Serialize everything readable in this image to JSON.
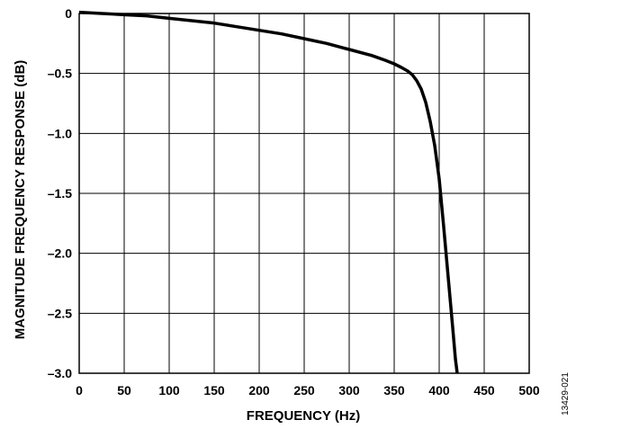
{
  "chart_data": {
    "type": "line",
    "title": "",
    "xlabel": "FREQUENCY (Hz)",
    "ylabel": "MAGNITUDE FREQUENCY RESPONSE (dB)",
    "xlim": [
      0,
      500
    ],
    "ylim": [
      -3.0,
      0
    ],
    "xticks": [
      0,
      50,
      100,
      150,
      200,
      250,
      300,
      350,
      400,
      450,
      500
    ],
    "yticks": [
      0,
      -0.5,
      -1.0,
      -1.5,
      -2.0,
      -2.5,
      -3.0
    ],
    "xtick_labels": [
      "0",
      "50",
      "100",
      "150",
      "200",
      "250",
      "300",
      "350",
      "400",
      "450",
      "500"
    ],
    "ytick_labels": [
      "0",
      "–0.5",
      "–1.0",
      "–1.5",
      "–2.0",
      "–2.5",
      "–3.0"
    ],
    "grid": true,
    "legend": "none",
    "series": [
      {
        "color": "#000000",
        "x": [
          0,
          25,
          50,
          75,
          100,
          125,
          150,
          175,
          200,
          225,
          250,
          275,
          300,
          325,
          340,
          350,
          358,
          365,
          370,
          375,
          380,
          385,
          390,
          395,
          400,
          405,
          410,
          415,
          418,
          420
        ],
        "y": [
          0.01,
          0.0,
          -0.01,
          -0.02,
          -0.04,
          -0.06,
          -0.08,
          -0.11,
          -0.14,
          -0.17,
          -0.21,
          -0.25,
          -0.3,
          -0.35,
          -0.39,
          -0.42,
          -0.45,
          -0.48,
          -0.51,
          -0.56,
          -0.63,
          -0.74,
          -0.9,
          -1.1,
          -1.38,
          -1.78,
          -2.2,
          -2.62,
          -2.88,
          -3.0
        ]
      }
    ]
  },
  "figure_id": "13429-021"
}
